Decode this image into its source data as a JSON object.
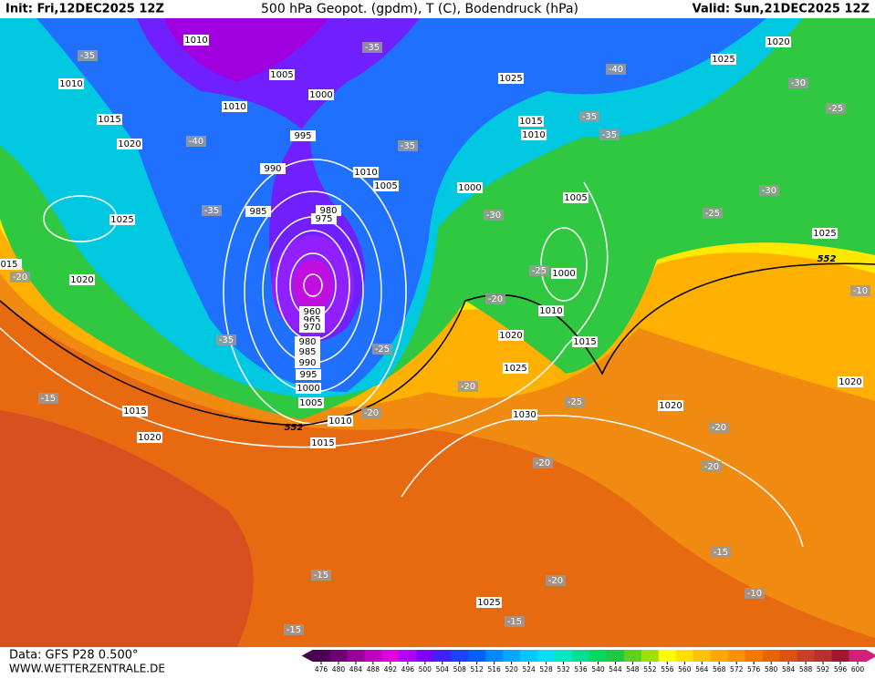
{
  "header": {
    "init": "Init: Fri,12DEC2025 12Z",
    "title": "500 hPa Geopot. (gpdm), T (C), Bodendruck (hPa)",
    "valid": "Valid: Sun,21DEC2025 12Z"
  },
  "footer": {
    "data": "Data: GFS P28 0.500°",
    "site": "WWW.WETTERZENTRALE.DE"
  },
  "colorbar": {
    "ticks": [
      476,
      480,
      484,
      488,
      492,
      496,
      500,
      504,
      508,
      512,
      516,
      520,
      524,
      528,
      532,
      536,
      540,
      544,
      548,
      552,
      556,
      560,
      564,
      568,
      572,
      576,
      580,
      584,
      588,
      592,
      596,
      600
    ],
    "colors": [
      "#4a0050",
      "#700070",
      "#9a009a",
      "#c000c0",
      "#e000e0",
      "#b000ff",
      "#8000ff",
      "#4020ff",
      "#2040ff",
      "#0060ff",
      "#0088ff",
      "#00a8ff",
      "#00c8ff",
      "#00e0f0",
      "#00e8c0",
      "#00e090",
      "#00d860",
      "#20c840",
      "#60d020",
      "#a0e000",
      "#ffff00",
      "#ffe000",
      "#ffc400",
      "#ffa800",
      "#ff9000",
      "#f47800",
      "#e86400",
      "#dc5010",
      "#c84028",
      "#b83030",
      "#a01830",
      "#d0207a"
    ]
  },
  "pressure_labels": [
    "1010",
    "1010",
    "1005",
    "1000",
    "1010",
    "1015",
    "1020",
    "995",
    "990",
    "1010",
    "1005",
    "985",
    "980",
    "975",
    "1025",
    "1020",
    "960",
    "965",
    "970",
    "980",
    "985",
    "990",
    "995",
    "1000",
    "1005",
    "1010",
    "1015",
    "1015",
    "1020",
    "1025",
    "1015",
    "1010",
    "1000",
    "1005",
    "1000",
    "1010",
    "1015",
    "1020",
    "1025",
    "1030",
    "1020",
    "1020",
    "1025",
    "1025",
    "1020",
    "1025",
    "015"
  ],
  "temperature_labels": [
    "-35",
    "-35",
    "-40",
    "-30",
    "-25",
    "-35",
    "-35",
    "-40",
    "-35",
    "-30",
    "-25",
    "-30",
    "-35",
    "-25",
    "-20",
    "-10",
    "-20",
    "-35",
    "-25",
    "-20",
    "-25",
    "-20",
    "-15",
    "-20",
    "-20",
    "-20",
    "-15",
    "-15",
    "-20",
    "-10",
    "-15",
    "-15"
  ],
  "height_labels": [
    "552",
    "552"
  ]
}
